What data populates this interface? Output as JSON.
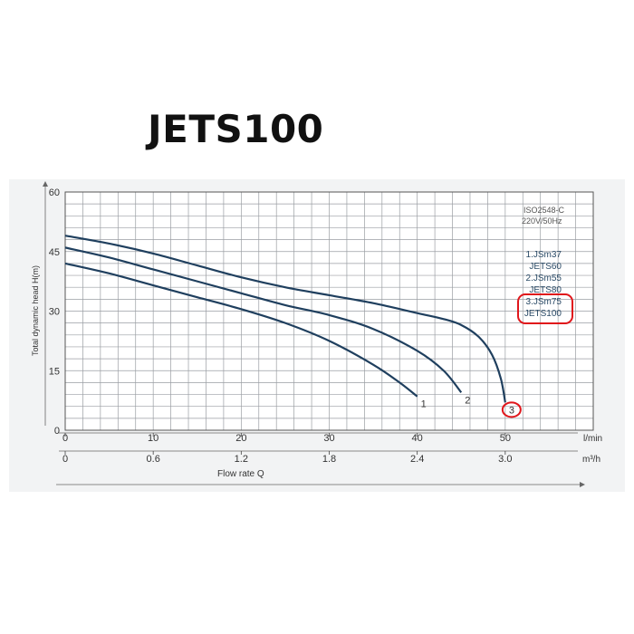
{
  "page": {
    "title": "JETS100"
  },
  "chart_data": {
    "type": "line",
    "title": "JETS100",
    "xlabel": "Flow rate Q",
    "ylabel": "Total dynamic head H(m)",
    "xlim": [
      0,
      60
    ],
    "ylim": [
      0,
      60
    ],
    "x_unit": "l/min",
    "x2_unit": "m³/h",
    "x_ticks": [
      "0",
      "10",
      "20",
      "30",
      "40",
      "50"
    ],
    "x2_ticks": [
      "0",
      "0.6",
      "1.2",
      "1.8",
      "2.4",
      "3.0"
    ],
    "y_ticks": [
      "0",
      "15",
      "30",
      "45",
      "60"
    ],
    "standard_note": [
      "ISO2548-C",
      "220V/50Hz"
    ],
    "grid": true,
    "legend_position": "top-right",
    "legend": [
      {
        "id": "1",
        "lines": [
          "1.JSm37",
          "JETS60"
        ],
        "highlighted": false
      },
      {
        "id": "2",
        "lines": [
          "2.JSm55",
          "JETS80"
        ],
        "highlighted": false
      },
      {
        "id": "3",
        "lines": [
          "3.JSm75",
          "JETS100"
        ],
        "highlighted": true
      }
    ],
    "series": [
      {
        "label": "1",
        "x": [
          0,
          5,
          10,
          15,
          20,
          25,
          30,
          35,
          38,
          40
        ],
        "y": [
          42,
          39.5,
          36.5,
          33.5,
          30.5,
          27,
          22.5,
          16.5,
          12,
          8.5
        ]
      },
      {
        "label": "2",
        "x": [
          0,
          5,
          10,
          15,
          20,
          25,
          30,
          35,
          40,
          43,
          45
        ],
        "y": [
          46,
          43.5,
          40.5,
          37.5,
          34.5,
          31.5,
          29,
          25.5,
          20,
          15,
          9.5
        ]
      },
      {
        "label": "3",
        "x": [
          0,
          5,
          10,
          15,
          20,
          25,
          30,
          35,
          40,
          43,
          45,
          47,
          48.5,
          49.5,
          50
        ],
        "y": [
          49,
          47,
          44.5,
          41.5,
          38.5,
          36,
          34,
          32,
          29.5,
          28,
          26.5,
          23.5,
          19,
          13,
          7
        ]
      }
    ],
    "highlight_color": "#e0161b",
    "line_color": "#1f3f5e"
  }
}
